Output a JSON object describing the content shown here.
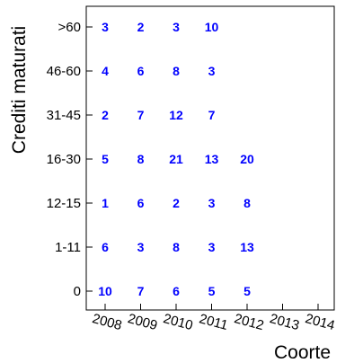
{
  "chart_data": {
    "type": "table",
    "xlabel": "Coorte",
    "ylabel": "Crediti maturati",
    "x_categories": [
      "2008",
      "2009",
      "2010",
      "2011",
      "2012",
      "2013",
      "2014"
    ],
    "y_categories": [
      "0",
      "1-11",
      "12-15",
      "16-30",
      "31-45",
      "46-60",
      ">60"
    ],
    "cells": [
      {
        "x": "2008",
        "y": ">60",
        "value": "3"
      },
      {
        "x": "2009",
        "y": ">60",
        "value": "2"
      },
      {
        "x": "2010",
        "y": ">60",
        "value": "3"
      },
      {
        "x": "2011",
        "y": ">60",
        "value": "10"
      },
      {
        "x": "2008",
        "y": "46-60",
        "value": "4"
      },
      {
        "x": "2009",
        "y": "46-60",
        "value": "6"
      },
      {
        "x": "2010",
        "y": "46-60",
        "value": "8"
      },
      {
        "x": "2011",
        "y": "46-60",
        "value": "3"
      },
      {
        "x": "2008",
        "y": "31-45",
        "value": "2"
      },
      {
        "x": "2009",
        "y": "31-45",
        "value": "7"
      },
      {
        "x": "2010",
        "y": "31-45",
        "value": "12"
      },
      {
        "x": "2011",
        "y": "31-45",
        "value": "7"
      },
      {
        "x": "2008",
        "y": "16-30",
        "value": "5"
      },
      {
        "x": "2009",
        "y": "16-30",
        "value": "8"
      },
      {
        "x": "2010",
        "y": "16-30",
        "value": "21"
      },
      {
        "x": "2011",
        "y": "16-30",
        "value": "13"
      },
      {
        "x": "2012",
        "y": "16-30",
        "value": "20"
      },
      {
        "x": "2008",
        "y": "12-15",
        "value": "1"
      },
      {
        "x": "2009",
        "y": "12-15",
        "value": "6"
      },
      {
        "x": "2010",
        "y": "12-15",
        "value": "2"
      },
      {
        "x": "2011",
        "y": "12-15",
        "value": "3"
      },
      {
        "x": "2012",
        "y": "12-15",
        "value": "8"
      },
      {
        "x": "2008",
        "y": "1-11",
        "value": "6"
      },
      {
        "x": "2009",
        "y": "1-11",
        "value": "3"
      },
      {
        "x": "2010",
        "y": "1-11",
        "value": "8"
      },
      {
        "x": "2011",
        "y": "1-11",
        "value": "3"
      },
      {
        "x": "2012",
        "y": "1-11",
        "value": "13"
      },
      {
        "x": "2008",
        "y": "0",
        "value": "10"
      },
      {
        "x": "2009",
        "y": "0",
        "value": "7"
      },
      {
        "x": "2010",
        "y": "0",
        "value": "6"
      },
      {
        "x": "2011",
        "y": "0",
        "value": "5"
      },
      {
        "x": "2012",
        "y": "0",
        "value": "5"
      }
    ],
    "grid": false,
    "label_color": "#0000ff"
  }
}
